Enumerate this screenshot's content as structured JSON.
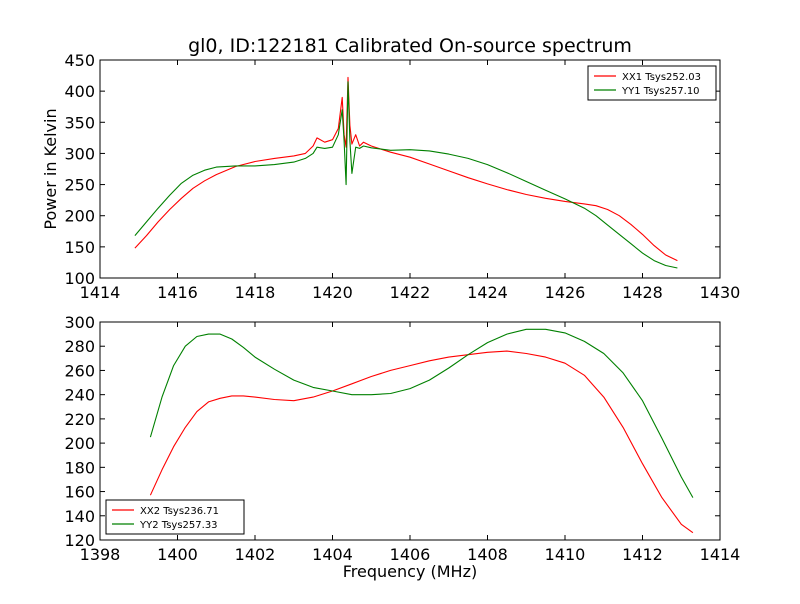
{
  "chart_data": [
    {
      "type": "line",
      "title": "gl0, ID:122181 Calibrated On-source spectrum",
      "xlabel": "",
      "ylabel": "Power in Kelvin",
      "xlim": [
        1414,
        1430
      ],
      "ylim": [
        100,
        450
      ],
      "xticks": [
        1414,
        1416,
        1418,
        1420,
        1422,
        1424,
        1426,
        1428,
        1430
      ],
      "yticks": [
        100,
        150,
        200,
        250,
        300,
        350,
        400,
        450
      ],
      "legend_position": "top-right",
      "grid": false,
      "series": [
        {
          "name": "XX1 Tsys252.03",
          "color": "#ff0000",
          "x": [
            1414.9,
            1415.2,
            1415.5,
            1415.8,
            1416.1,
            1416.4,
            1416.7,
            1417.0,
            1417.5,
            1418.0,
            1418.5,
            1419.0,
            1419.3,
            1419.5,
            1419.6,
            1419.8,
            1420.0,
            1420.15,
            1420.25,
            1420.3,
            1420.35,
            1420.4,
            1420.45,
            1420.5,
            1420.6,
            1420.7,
            1420.8,
            1421.0,
            1421.5,
            1422.0,
            1422.5,
            1423.0,
            1423.5,
            1424.0,
            1424.5,
            1425.0,
            1425.5,
            1426.0,
            1426.5,
            1426.8,
            1427.1,
            1427.4,
            1427.7,
            1428.0,
            1428.3,
            1428.6,
            1428.9
          ],
          "y": [
            148,
            168,
            190,
            210,
            228,
            244,
            256,
            266,
            279,
            287,
            292,
            296,
            300,
            312,
            325,
            318,
            322,
            340,
            390,
            330,
            310,
            422,
            345,
            315,
            330,
            312,
            318,
            312,
            302,
            294,
            283,
            272,
            261,
            251,
            242,
            234,
            228,
            223,
            219,
            216,
            210,
            200,
            186,
            170,
            152,
            137,
            128
          ]
        },
        {
          "name": "YY1 Tsys257.10",
          "color": "#008000",
          "x": [
            1414.9,
            1415.2,
            1415.5,
            1415.8,
            1416.1,
            1416.4,
            1416.7,
            1417.0,
            1417.5,
            1418.0,
            1418.5,
            1419.0,
            1419.3,
            1419.5,
            1419.6,
            1419.8,
            1420.0,
            1420.15,
            1420.25,
            1420.3,
            1420.35,
            1420.4,
            1420.45,
            1420.5,
            1420.6,
            1420.7,
            1420.8,
            1421.0,
            1421.5,
            1422.0,
            1422.5,
            1423.0,
            1423.5,
            1424.0,
            1424.5,
            1425.0,
            1425.5,
            1426.0,
            1426.5,
            1426.8,
            1427.1,
            1427.4,
            1427.7,
            1428.0,
            1428.3,
            1428.6,
            1428.9
          ],
          "y": [
            168,
            190,
            212,
            233,
            252,
            265,
            273,
            278,
            280,
            280,
            282,
            286,
            292,
            300,
            310,
            308,
            310,
            330,
            370,
            320,
            250,
            415,
            320,
            268,
            310,
            308,
            312,
            309,
            305,
            306,
            304,
            299,
            292,
            282,
            269,
            255,
            241,
            227,
            212,
            200,
            185,
            170,
            155,
            140,
            128,
            120,
            116
          ]
        }
      ]
    },
    {
      "type": "line",
      "title": "",
      "xlabel": "Frequency (MHz)",
      "ylabel": "",
      "xlim": [
        1398,
        1414
      ],
      "ylim": [
        120,
        300
      ],
      "xticks": [
        1398,
        1400,
        1402,
        1404,
        1406,
        1408,
        1410,
        1412,
        1414
      ],
      "yticks": [
        120,
        140,
        160,
        180,
        200,
        220,
        240,
        260,
        280,
        300
      ],
      "legend_position": "bottom-left",
      "grid": false,
      "series": [
        {
          "name": "XX2 Tsys236.71",
          "color": "#ff0000",
          "x": [
            1399.3,
            1399.6,
            1399.9,
            1400.2,
            1400.5,
            1400.8,
            1401.1,
            1401.4,
            1401.7,
            1402.0,
            1402.5,
            1403.0,
            1403.5,
            1404.0,
            1404.5,
            1405.0,
            1405.5,
            1406.0,
            1406.5,
            1407.0,
            1407.5,
            1408.0,
            1408.5,
            1409.0,
            1409.5,
            1410.0,
            1410.5,
            1411.0,
            1411.5,
            1412.0,
            1412.5,
            1413.0,
            1413.3
          ],
          "y": [
            157,
            178,
            197,
            213,
            226,
            234,
            237,
            239,
            239,
            238,
            236,
            235,
            238,
            243,
            249,
            255,
            260,
            264,
            268,
            271,
            273,
            275,
            276,
            274,
            271,
            266,
            256,
            238,
            213,
            183,
            155,
            133,
            126
          ]
        },
        {
          "name": "YY2 Tsys257.33",
          "color": "#008000",
          "x": [
            1399.3,
            1399.6,
            1399.9,
            1400.2,
            1400.5,
            1400.8,
            1401.1,
            1401.4,
            1401.7,
            1402.0,
            1402.5,
            1403.0,
            1403.5,
            1404.0,
            1404.5,
            1405.0,
            1405.5,
            1406.0,
            1406.5,
            1407.0,
            1407.5,
            1408.0,
            1408.5,
            1409.0,
            1409.5,
            1410.0,
            1410.5,
            1411.0,
            1411.5,
            1412.0,
            1412.5,
            1413.0,
            1413.3
          ],
          "y": [
            205,
            238,
            264,
            280,
            288,
            290,
            290,
            286,
            279,
            271,
            261,
            252,
            246,
            243,
            240,
            240,
            241,
            245,
            252,
            262,
            273,
            283,
            290,
            294,
            294,
            291,
            284,
            274,
            258,
            235,
            204,
            172,
            155
          ]
        }
      ]
    }
  ]
}
